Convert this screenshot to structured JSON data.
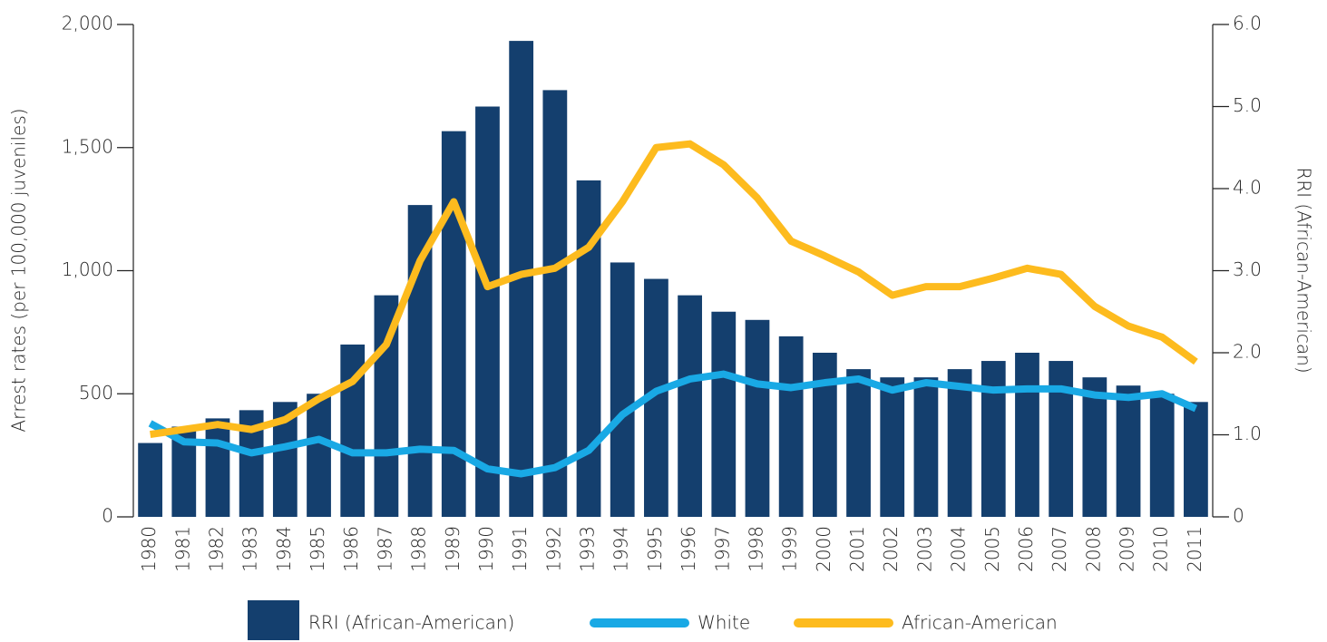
{
  "chart_data": {
    "type": "bar_line",
    "y_label": "Arrest rates (per 100,000 juveniles)",
    "y2_label": "RRI (African-American)",
    "categories": [
      "1980",
      "1981",
      "1982",
      "1983",
      "1984",
      "1985",
      "1986",
      "1987",
      "1988",
      "1989",
      "1990",
      "1991",
      "1992",
      "1993",
      "1994",
      "1995",
      "1996",
      "1997",
      "1998",
      "1999",
      "2000",
      "2001",
      "2002",
      "2003",
      "2004",
      "2005",
      "2006",
      "2007",
      "2008",
      "2009",
      "2010",
      "2011"
    ],
    "series": [
      {
        "name": "RRI (African-American)",
        "type": "bar",
        "axis": "y2",
        "color": "#143f6e",
        "values": [
          0.9,
          1.1,
          1.2,
          1.3,
          1.4,
          1.5,
          2.1,
          2.7,
          3.8,
          4.7,
          5.0,
          5.8,
          5.2,
          4.1,
          3.1,
          2.9,
          2.7,
          2.5,
          2.4,
          2.2,
          2.0,
          1.8,
          1.7,
          1.7,
          1.8,
          1.9,
          2.0,
          1.9,
          1.7,
          1.6,
          1.5,
          1.4
        ]
      },
      {
        "name": "White",
        "type": "line",
        "color": "#19a9e5",
        "values": [
          380,
          305,
          300,
          260,
          285,
          315,
          260,
          260,
          275,
          270,
          195,
          175,
          200,
          270,
          415,
          510,
          560,
          580,
          540,
          525,
          545,
          560,
          515,
          545,
          530,
          515,
          520,
          520,
          495,
          485,
          500,
          440
        ]
      },
      {
        "name": "African-American",
        "type": "line",
        "color": "#fdbb1e",
        "values": [
          335,
          355,
          375,
          355,
          395,
          480,
          550,
          700,
          1040,
          1280,
          935,
          985,
          1010,
          1095,
          1280,
          1500,
          1515,
          1430,
          1295,
          1120,
          1060,
          995,
          900,
          935,
          935,
          970,
          1010,
          985,
          855,
          775,
          730,
          630
        ]
      }
    ],
    "ylim": [
      0,
      2000
    ],
    "yticks": [
      0,
      500,
      {
        "value": 1000,
        "label": "1,000"
      },
      {
        "value": 1500,
        "label": "1,500"
      },
      {
        "value": 2000,
        "label": "2,000"
      }
    ],
    "y2lim": [
      0,
      6
    ],
    "y2ticks": [
      0,
      {
        "value": 1,
        "label": "1.0"
      },
      {
        "value": 2,
        "label": "2.0"
      },
      {
        "value": 3,
        "label": "3.0"
      },
      {
        "value": 4,
        "label": "4.0"
      },
      {
        "value": 5,
        "label": "5.0"
      },
      {
        "value": 6,
        "label": "6.0"
      }
    ]
  }
}
